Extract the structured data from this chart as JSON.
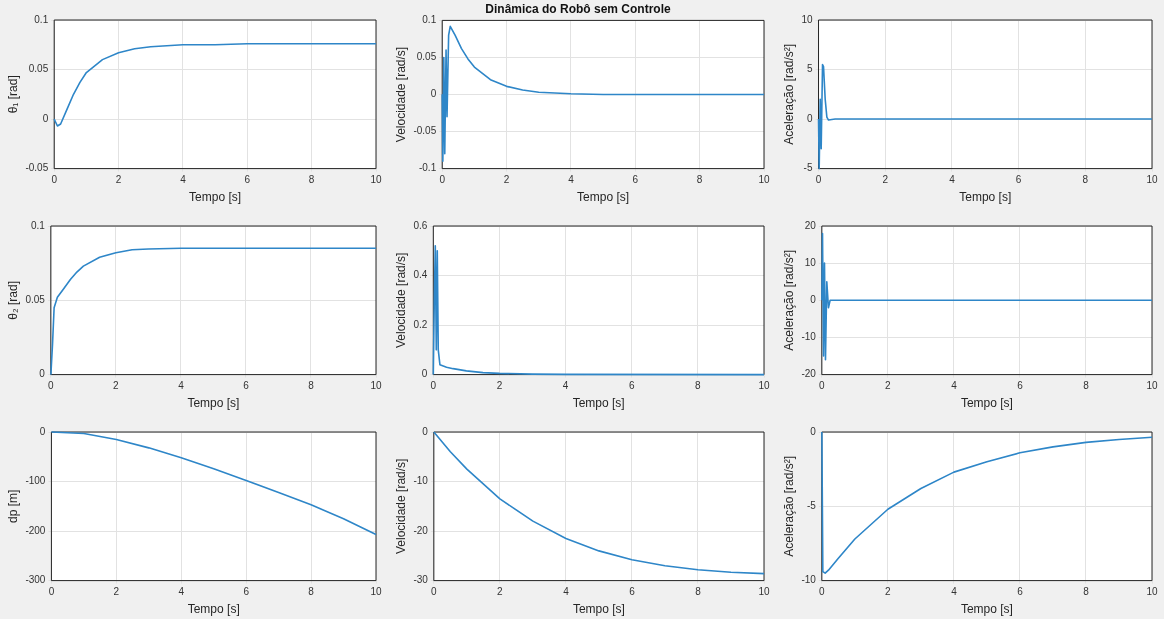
{
  "chart_data": [
    {
      "type": "line",
      "xlabel": "Tempo [s]",
      "ylabel": "θ₁ [rad]",
      "xlim": [
        0,
        10
      ],
      "xticks": [
        0,
        2,
        4,
        6,
        8,
        10
      ],
      "ylim": [
        -0.05,
        0.1
      ],
      "yticks": [
        -0.05,
        0,
        0.05,
        0.1
      ],
      "grid": true,
      "legend": false,
      "marker": "none",
      "color": "#2e86c8",
      "x": [
        0,
        0.1,
        0.2,
        0.4,
        0.6,
        0.8,
        1,
        1.5,
        2,
        2.5,
        3,
        4,
        5,
        6,
        8,
        10
      ],
      "values": [
        0,
        -0.007,
        -0.005,
        0.01,
        0.025,
        0.037,
        0.047,
        0.06,
        0.067,
        0.071,
        0.073,
        0.075,
        0.075,
        0.076,
        0.076,
        0.076
      ]
    },
    {
      "type": "line",
      "title": "Dinâmica do Robô sem Controle",
      "xlabel": "Tempo [s]",
      "ylabel": "Velocidade [rad/s]",
      "xlim": [
        0,
        10
      ],
      "xticks": [
        0,
        2,
        4,
        6,
        8,
        10
      ],
      "ylim": [
        -0.1,
        0.1
      ],
      "yticks": [
        -0.1,
        -0.05,
        0,
        0.05,
        0.1
      ],
      "grid": true,
      "legend": false,
      "marker": "none",
      "color": "#2e86c8",
      "x": [
        0,
        0.02,
        0.05,
        0.08,
        0.12,
        0.15,
        0.2,
        0.25,
        0.4,
        0.6,
        0.8,
        1,
        1.5,
        2,
        2.5,
        3,
        4,
        5,
        10
      ],
      "values": [
        0,
        -0.09,
        0.05,
        -0.08,
        0.06,
        -0.03,
        0.08,
        0.092,
        0.08,
        0.062,
        0.048,
        0.037,
        0.02,
        0.011,
        0.006,
        0.003,
        0.001,
        0,
        0
      ]
    },
    {
      "type": "line",
      "xlabel": "Tempo [s]",
      "ylabel": "Aceleração [rad/s²]",
      "xlim": [
        0,
        10
      ],
      "xticks": [
        0,
        2,
        4,
        6,
        8,
        10
      ],
      "ylim": [
        -5,
        10
      ],
      "yticks": [
        -5,
        0,
        5,
        10
      ],
      "grid": true,
      "legend": false,
      "marker": "none",
      "color": "#2e86c8",
      "x": [
        0,
        0.02,
        0.05,
        0.08,
        0.12,
        0.15,
        0.2,
        0.25,
        0.3,
        0.5,
        1,
        10
      ],
      "values": [
        0,
        -5,
        2,
        -3,
        5.5,
        5.3,
        2,
        0.2,
        -0.1,
        0,
        0,
        0
      ]
    },
    {
      "type": "line",
      "xlabel": "Tempo [s]",
      "ylabel": "θ₂ [rad]",
      "xlim": [
        0,
        10
      ],
      "xticks": [
        0,
        2,
        4,
        6,
        8,
        10
      ],
      "ylim": [
        0,
        0.1
      ],
      "yticks": [
        0,
        0.05,
        0.1
      ],
      "grid": true,
      "legend": false,
      "marker": "none",
      "color": "#2e86c8",
      "x": [
        0,
        0.05,
        0.1,
        0.2,
        0.4,
        0.6,
        0.8,
        1,
        1.5,
        2,
        2.5,
        3,
        4,
        10
      ],
      "values": [
        0,
        0.02,
        0.045,
        0.052,
        0.058,
        0.064,
        0.069,
        0.073,
        0.079,
        0.082,
        0.084,
        0.0845,
        0.085,
        0.085
      ]
    },
    {
      "type": "line",
      "xlabel": "Tempo [s]",
      "ylabel": "Velocidade [rad/s]",
      "xlim": [
        0,
        10
      ],
      "xticks": [
        0,
        2,
        4,
        6,
        8,
        10
      ],
      "ylim": [
        0,
        0.6
      ],
      "yticks": [
        0,
        0.2,
        0.4,
        0.6
      ],
      "grid": true,
      "legend": false,
      "marker": "none",
      "color": "#2e86c8",
      "x": [
        0,
        0.03,
        0.06,
        0.09,
        0.12,
        0.15,
        0.2,
        0.4,
        0.6,
        1,
        1.5,
        2,
        3,
        4,
        10
      ],
      "values": [
        0,
        0.3,
        0.52,
        0.1,
        0.5,
        0.1,
        0.04,
        0.03,
        0.024,
        0.015,
        0.008,
        0.005,
        0.002,
        0.001,
        0
      ]
    },
    {
      "type": "line",
      "xlabel": "Tempo [s]",
      "ylabel": "Aceleração [rad/s²]",
      "xlim": [
        0,
        10
      ],
      "xticks": [
        0,
        2,
        4,
        6,
        8,
        10
      ],
      "ylim": [
        -20,
        20
      ],
      "yticks": [
        -20,
        -10,
        0,
        10,
        20
      ],
      "grid": true,
      "legend": false,
      "marker": "none",
      "color": "#2e86c8",
      "x": [
        0,
        0.02,
        0.05,
        0.08,
        0.11,
        0.15,
        0.2,
        0.25,
        10
      ],
      "values": [
        0,
        18,
        -15,
        10,
        -16,
        5,
        -2,
        0,
        0
      ]
    },
    {
      "type": "line",
      "xlabel": "Tempo [s]",
      "ylabel": "dp [m]",
      "xlim": [
        0,
        10
      ],
      "xticks": [
        0,
        2,
        4,
        6,
        8,
        10
      ],
      "ylim": [
        -300,
        0
      ],
      "yticks": [
        -300,
        -200,
        -100,
        0
      ],
      "grid": true,
      "legend": false,
      "marker": "none",
      "color": "#2e86c8",
      "x": [
        0,
        1,
        2,
        3,
        4,
        5,
        6,
        7,
        8,
        9,
        10
      ],
      "values": [
        0,
        -3,
        -15,
        -32,
        -52,
        -74,
        -98,
        -122,
        -147,
        -175,
        -207
      ]
    },
    {
      "type": "line",
      "xlabel": "Tempo [s]",
      "ylabel": "Velocidade [rad/s]",
      "xlim": [
        0,
        10
      ],
      "xticks": [
        0,
        2,
        4,
        6,
        8,
        10
      ],
      "ylim": [
        -30,
        0
      ],
      "yticks": [
        -30,
        -20,
        -10,
        0
      ],
      "grid": true,
      "legend": false,
      "marker": "none",
      "color": "#2e86c8",
      "x": [
        0,
        0.5,
        1,
        2,
        3,
        4,
        5,
        6,
        7,
        8,
        9,
        10
      ],
      "values": [
        0,
        -4,
        -7.5,
        -13.5,
        -18,
        -21.5,
        -24,
        -25.8,
        -27,
        -27.8,
        -28.3,
        -28.6
      ]
    },
    {
      "type": "line",
      "xlabel": "Tempo [s]",
      "ylabel": "Aceleração [rad/s²]",
      "xlim": [
        0,
        10
      ],
      "xticks": [
        0,
        2,
        4,
        6,
        8,
        10
      ],
      "ylim": [
        -10,
        0
      ],
      "yticks": [
        -10,
        -5,
        0
      ],
      "grid": true,
      "legend": false,
      "marker": "none",
      "color": "#2e86c8",
      "x": [
        0,
        0.03,
        0.1,
        0.2,
        0.5,
        1,
        2,
        3,
        4,
        5,
        6,
        7,
        8,
        9,
        10
      ],
      "values": [
        0,
        -9.4,
        -9.5,
        -9.3,
        -8.5,
        -7.2,
        -5.2,
        -3.8,
        -2.7,
        -2,
        -1.4,
        -1,
        -0.7,
        -0.5,
        -0.35
      ]
    }
  ]
}
